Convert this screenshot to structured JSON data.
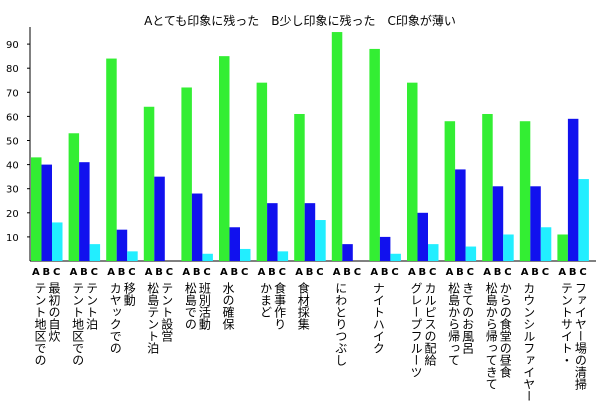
{
  "chart_data": {
    "type": "bar",
    "legend_text": "Aとても印象に残った　B少し印象に残った　C印象が薄い",
    "categories": [
      [
        "テント地区での",
        "最初の自炊"
      ],
      [
        "テント地区での",
        "テント泊"
      ],
      [
        "カヤックでの",
        "移動"
      ],
      [
        "松島テント泊",
        "テント設営"
      ],
      [
        "松島での",
        "班別活動"
      ],
      [
        "水の確保"
      ],
      [
        "かまど",
        "食事作り"
      ],
      [
        "食材採集"
      ],
      [
        "にわとりつぶし"
      ],
      [
        "ナイトハイク"
      ],
      [
        "グレープフルーツ",
        "カルピスの配給"
      ],
      [
        "松島から帰って",
        "きてのお風呂"
      ],
      [
        "松島から帰ってきて",
        "からの食堂の昼食"
      ],
      [
        "カウンシルファイヤー"
      ],
      [
        "テントサイト・",
        "ファイヤー場の清掃"
      ]
    ],
    "series": [
      {
        "name": "A",
        "color": "#33ee33",
        "values": [
          43,
          53,
          84,
          64,
          72,
          85,
          74,
          61,
          95,
          88,
          74,
          58,
          61,
          58,
          11
        ]
      },
      {
        "name": "B",
        "color": "#1111ee",
        "values": [
          40,
          41,
          13,
          35,
          28,
          14,
          24,
          24,
          7,
          10,
          20,
          38,
          31,
          31,
          59
        ]
      },
      {
        "name": "C",
        "color": "#22eeff",
        "values": [
          16,
          7,
          4,
          0,
          3,
          5,
          4,
          17,
          0,
          3,
          7,
          6,
          11,
          14,
          34
        ]
      }
    ],
    "group_labels": [
      "A",
      "B",
      "C"
    ],
    "yticks": [
      "10",
      "20",
      "30",
      "40",
      "50",
      "60",
      "70",
      "80",
      "90"
    ],
    "ylim": [
      0,
      100
    ],
    "grid": false
  }
}
